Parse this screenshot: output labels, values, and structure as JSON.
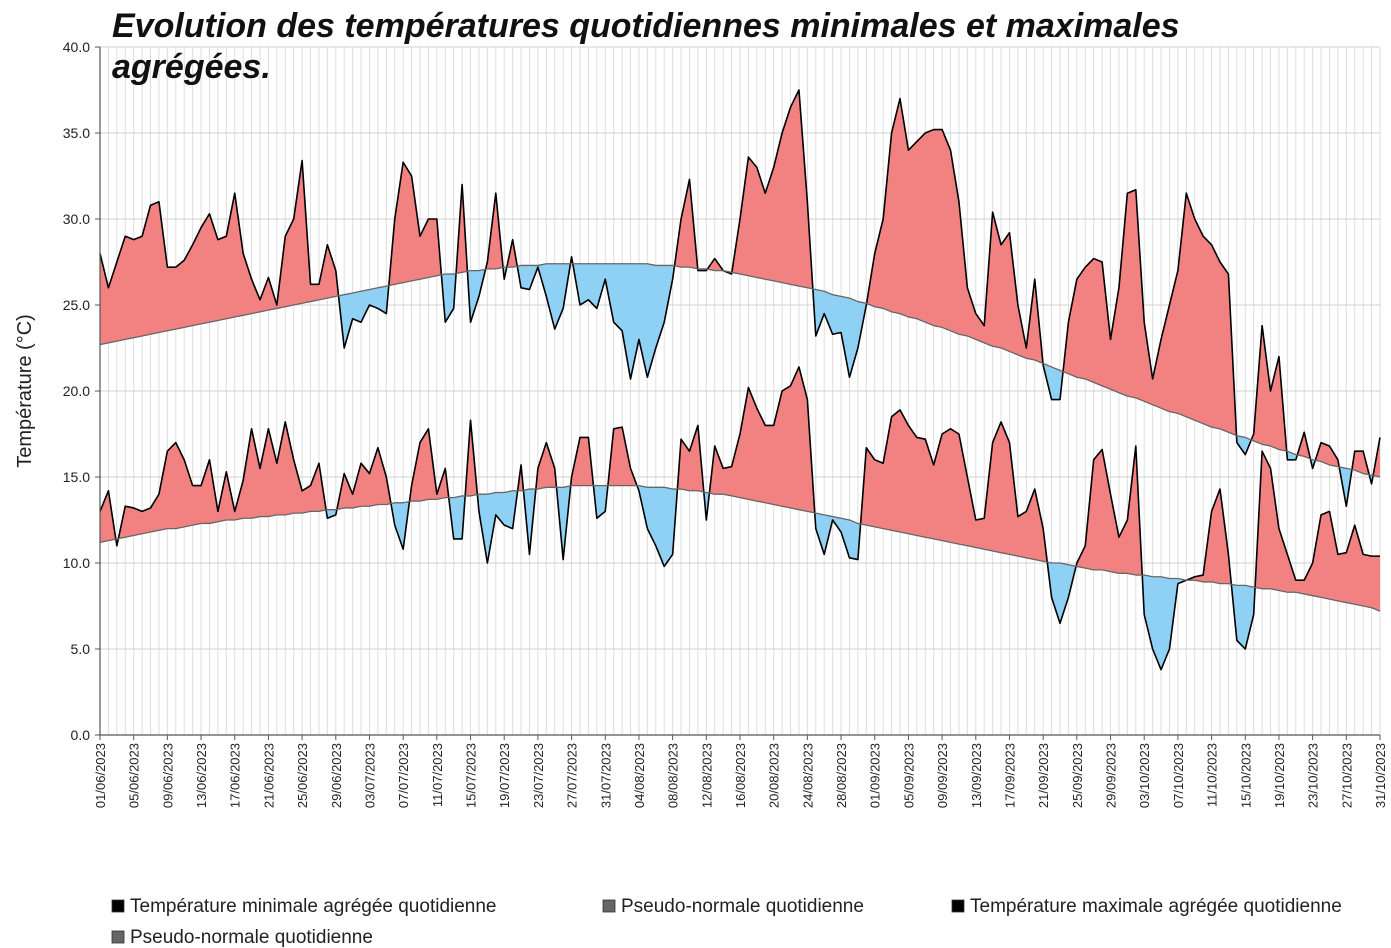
{
  "chart_data": {
    "type": "line",
    "title": "Evolution des températures quotidiennes minimales et maximales agrégées.",
    "y_label": "Température (°C)",
    "ylim": [
      0,
      40
    ],
    "yticks": [
      {
        "value": 0,
        "label": "0.0"
      },
      {
        "value": 5,
        "label": "5.0"
      },
      {
        "value": 10,
        "label": "10.0"
      },
      {
        "value": 15,
        "label": "15.0"
      },
      {
        "value": 20,
        "label": "20.0"
      },
      {
        "value": 25,
        "label": "25.0"
      },
      {
        "value": 30,
        "label": "30.0"
      },
      {
        "value": 35,
        "label": "35.0"
      },
      {
        "value": 40,
        "label": "40.0"
      }
    ],
    "grid": true,
    "fill_above_color": "#f28282",
    "fill_below_color": "#8fd0f5",
    "categories": [
      "01/06/2023",
      null,
      null,
      null,
      "05/06/2023",
      null,
      null,
      null,
      "09/06/2023",
      null,
      null,
      null,
      "13/06/2023",
      null,
      null,
      null,
      "17/06/2023",
      null,
      null,
      null,
      "21/06/2023",
      null,
      null,
      null,
      "25/06/2023",
      null,
      null,
      null,
      "29/06/2023",
      null,
      null,
      null,
      "03/07/2023",
      null,
      null,
      null,
      "07/07/2023",
      null,
      null,
      null,
      "11/07/2023",
      null,
      null,
      null,
      "15/07/2023",
      null,
      null,
      null,
      "19/07/2023",
      null,
      null,
      null,
      "23/07/2023",
      null,
      null,
      null,
      "27/07/2023",
      null,
      null,
      null,
      "31/07/2023",
      null,
      null,
      null,
      "04/08/2023",
      null,
      null,
      null,
      "08/08/2023",
      null,
      null,
      null,
      "12/08/2023",
      null,
      null,
      null,
      "16/08/2023",
      null,
      null,
      null,
      "20/08/2023",
      null,
      null,
      null,
      "24/08/2023",
      null,
      null,
      null,
      "28/08/2023",
      null,
      null,
      null,
      "01/09/2023",
      null,
      null,
      null,
      "05/09/2023",
      null,
      null,
      null,
      "09/09/2023",
      null,
      null,
      null,
      "13/09/2023",
      null,
      null,
      null,
      "17/09/2023",
      null,
      null,
      null,
      "21/09/2023",
      null,
      null,
      null,
      "25/09/2023",
      null,
      null,
      null,
      "29/09/2023",
      null,
      null,
      null,
      "03/10/2023",
      null,
      null,
      null,
      "07/10/2023",
      null,
      null,
      null,
      "11/10/2023",
      null,
      null,
      null,
      "15/10/2023",
      null,
      null,
      null,
      "19/10/2023",
      null,
      null,
      null,
      "23/10/2023",
      null,
      null,
      null,
      "27/10/2023",
      null,
      null,
      null,
      "31/10/2023"
    ],
    "series": [
      {
        "name": "Température minimale agrégée quotidienne",
        "color": "#000000",
        "values": [
          13,
          14.2,
          11,
          13.3,
          13.2,
          13,
          13.2,
          14,
          16.5,
          17,
          16,
          14.5,
          14.5,
          16,
          13,
          15.3,
          13,
          14.8,
          17.8,
          15.5,
          17.8,
          15.8,
          18.2,
          16,
          14.2,
          14.5,
          15.8,
          12.6,
          12.8,
          15.2,
          14,
          15.8,
          15.2,
          16.7,
          15,
          12.2,
          10.8,
          14.5,
          17,
          17.8,
          14,
          15.5,
          11.4,
          11.4,
          18.3,
          13,
          10,
          12.8,
          12.2,
          12,
          15.7,
          10.5,
          15.5,
          17,
          15.5,
          10.2,
          15,
          17.3,
          17.3,
          12.6,
          13,
          17.8,
          17.9,
          15.5,
          14.2,
          12,
          11,
          9.8,
          10.5,
          17.2,
          16.5,
          18,
          12.5,
          16.8,
          15.5,
          15.6,
          17.5,
          20.2,
          19,
          18,
          18,
          20,
          20.3,
          21.4,
          19.5,
          12,
          10.5,
          12.5,
          11.8,
          10.3,
          10.2,
          16.7,
          16,
          15.8,
          18.5,
          18.9,
          18,
          17.3,
          17.2,
          15.7,
          17.5,
          17.8,
          17.5,
          15,
          12.5,
          12.6,
          17,
          18.2,
          17,
          12.7,
          13,
          14.3,
          12,
          8,
          6.5,
          8,
          10,
          11,
          16,
          16.6,
          14,
          11.5,
          12.5,
          16.8,
          7,
          5,
          3.8,
          5,
          8.8,
          9,
          9.2,
          9.3,
          13,
          14.3,
          10.5,
          5.5,
          5,
          7,
          16.5,
          15.5,
          12,
          10.5,
          9,
          9,
          10,
          12.8,
          13,
          10.5,
          10.6,
          12.2,
          10.5,
          10.4,
          10.4
        ]
      },
      {
        "name": "Pseudo-normale quotidienne",
        "color": "#666666",
        "values": [
          11.2,
          11.3,
          11.4,
          11.5,
          11.6,
          11.7,
          11.8,
          11.9,
          12.0,
          12.0,
          12.1,
          12.2,
          12.3,
          12.3,
          12.4,
          12.5,
          12.5,
          12.6,
          12.6,
          12.7,
          12.7,
          12.8,
          12.8,
          12.9,
          12.9,
          13.0,
          13.0,
          13.1,
          13.1,
          13.2,
          13.2,
          13.3,
          13.3,
          13.4,
          13.4,
          13.5,
          13.5,
          13.6,
          13.6,
          13.7,
          13.7,
          13.8,
          13.8,
          13.9,
          13.9,
          14.0,
          14.0,
          14.1,
          14.1,
          14.2,
          14.2,
          14.3,
          14.3,
          14.4,
          14.4,
          14.4,
          14.5,
          14.5,
          14.5,
          14.5,
          14.5,
          14.5,
          14.5,
          14.5,
          14.5,
          14.4,
          14.4,
          14.4,
          14.3,
          14.3,
          14.2,
          14.2,
          14.1,
          14.0,
          14.0,
          13.9,
          13.8,
          13.7,
          13.6,
          13.5,
          13.4,
          13.3,
          13.2,
          13.1,
          13.0,
          12.9,
          12.8,
          12.7,
          12.6,
          12.5,
          12.3,
          12.2,
          12.1,
          12.0,
          11.9,
          11.8,
          11.7,
          11.6,
          11.5,
          11.4,
          11.3,
          11.2,
          11.1,
          11.0,
          10.9,
          10.8,
          10.7,
          10.6,
          10.5,
          10.4,
          10.3,
          10.2,
          10.1,
          10.0,
          10.0,
          9.9,
          9.8,
          9.7,
          9.6,
          9.6,
          9.5,
          9.4,
          9.4,
          9.3,
          9.3,
          9.2,
          9.2,
          9.1,
          9.1,
          9.0,
          9.0,
          8.9,
          8.9,
          8.8,
          8.8,
          8.7,
          8.7,
          8.6,
          8.5,
          8.5,
          8.4,
          8.3,
          8.3,
          8.2,
          8.1,
          8.0,
          7.9,
          7.8,
          7.7,
          7.6,
          7.5,
          7.4,
          7.2
        ]
      },
      {
        "name": "Température maximale agrégée quotidienne",
        "color": "#000000",
        "values": [
          28,
          26,
          27.5,
          29,
          28.8,
          29,
          30.8,
          31,
          27.2,
          27.2,
          27.6,
          28.5,
          29.5,
          30.3,
          28.8,
          29,
          31.5,
          28,
          26.5,
          25.3,
          26.6,
          25,
          29,
          30,
          33.4,
          26.2,
          26.2,
          28.5,
          27,
          22.5,
          24.2,
          24,
          25,
          24.8,
          24.5,
          30,
          33.3,
          32.5,
          29,
          30,
          30,
          24,
          24.8,
          32,
          24,
          25.5,
          27.5,
          31.5,
          26.5,
          28.8,
          26,
          25.9,
          27.2,
          25.5,
          23.6,
          24.8,
          27.8,
          25,
          25.3,
          24.8,
          26.5,
          24,
          23.5,
          20.7,
          23,
          20.8,
          22.5,
          24,
          26.5,
          30,
          32.3,
          27,
          27,
          27.7,
          27,
          26.8,
          30,
          33.6,
          33,
          31.5,
          33,
          35,
          36.5,
          37.5,
          31,
          23.2,
          24.5,
          23.3,
          23.4,
          20.8,
          22.5,
          25,
          28,
          30,
          35,
          37,
          34,
          34.5,
          35,
          35.2,
          35.2,
          34,
          31,
          26,
          24.5,
          23.8,
          30.4,
          28.5,
          29.2,
          25,
          22.5,
          26.5,
          21.5,
          19.5,
          19.5,
          24,
          26.5,
          27.2,
          27.7,
          27.5,
          23,
          26,
          31.5,
          31.7,
          24,
          20.7,
          23,
          25,
          27,
          31.5,
          30,
          29,
          28.5,
          27.5,
          26.8,
          17,
          16.3,
          17.5,
          23.8,
          20,
          22,
          16,
          16,
          17.6,
          15.5,
          17,
          16.8,
          16,
          13.3,
          16.5,
          16.5,
          14.6,
          17.3
        ]
      },
      {
        "name": "Pseudo-normale quotidienne",
        "color": "#666666",
        "values": [
          22.7,
          22.8,
          22.9,
          23.0,
          23.1,
          23.2,
          23.3,
          23.4,
          23.5,
          23.6,
          23.7,
          23.8,
          23.9,
          24.0,
          24.1,
          24.2,
          24.3,
          24.4,
          24.5,
          24.6,
          24.7,
          24.8,
          24.9,
          25.0,
          25.1,
          25.2,
          25.3,
          25.4,
          25.5,
          25.6,
          25.7,
          25.8,
          25.9,
          26.0,
          26.1,
          26.2,
          26.3,
          26.4,
          26.5,
          26.6,
          26.7,
          26.8,
          26.8,
          26.9,
          27.0,
          27.0,
          27.1,
          27.1,
          27.2,
          27.2,
          27.3,
          27.3,
          27.3,
          27.4,
          27.4,
          27.4,
          27.4,
          27.4,
          27.4,
          27.4,
          27.4,
          27.4,
          27.4,
          27.4,
          27.4,
          27.4,
          27.3,
          27.3,
          27.3,
          27.2,
          27.2,
          27.1,
          27.1,
          27.0,
          27.0,
          26.9,
          26.8,
          26.7,
          26.6,
          26.5,
          26.4,
          26.3,
          26.2,
          26.1,
          26.0,
          25.9,
          25.8,
          25.6,
          25.5,
          25.4,
          25.2,
          25.1,
          24.9,
          24.8,
          24.6,
          24.5,
          24.3,
          24.2,
          24.0,
          23.8,
          23.7,
          23.5,
          23.3,
          23.2,
          23.0,
          22.8,
          22.6,
          22.5,
          22.3,
          22.1,
          21.9,
          21.8,
          21.6,
          21.4,
          21.2,
          21.0,
          20.8,
          20.7,
          20.5,
          20.3,
          20.1,
          19.9,
          19.7,
          19.6,
          19.4,
          19.2,
          19.0,
          18.8,
          18.7,
          18.5,
          18.3,
          18.1,
          17.9,
          17.8,
          17.6,
          17.4,
          17.3,
          17.1,
          16.9,
          16.8,
          16.6,
          16.5,
          16.3,
          16.2,
          16.0,
          15.9,
          15.7,
          15.6,
          15.5,
          15.4,
          15.2,
          15.1,
          15.0
        ]
      }
    ]
  }
}
